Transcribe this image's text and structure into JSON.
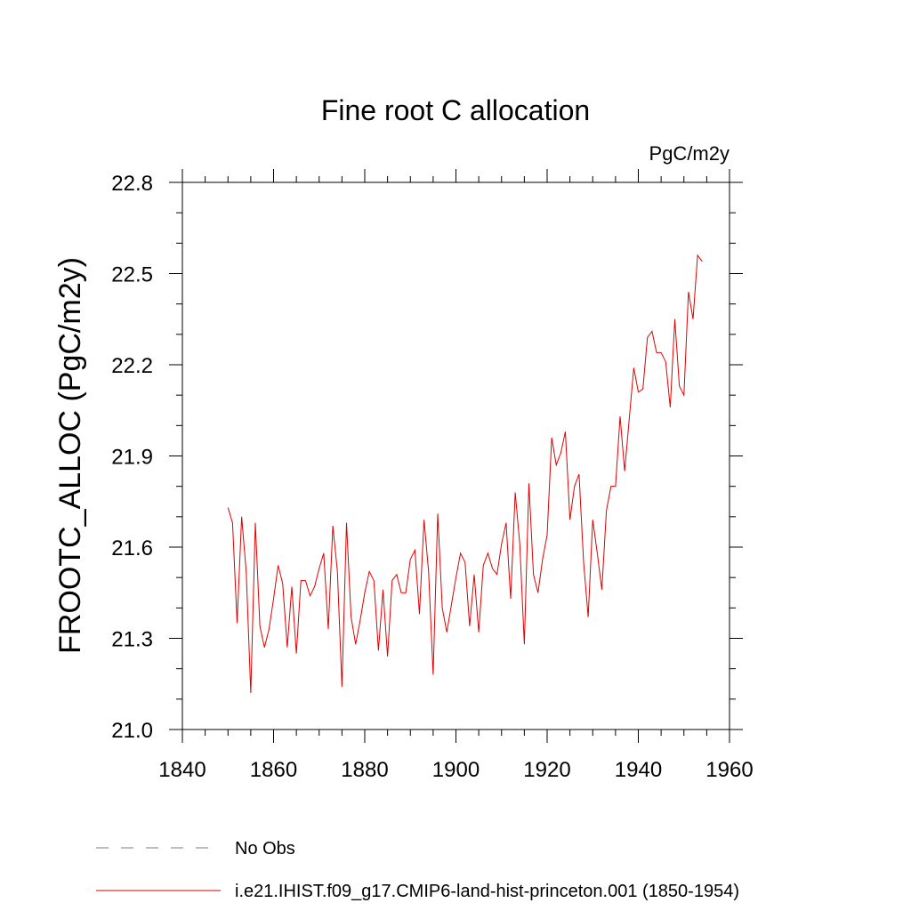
{
  "chart_data": {
    "type": "line",
    "title": "Fine root C allocation",
    "units_label": "PgC/m2y",
    "ylabel": "FROOTC_ALLOC  (PgC/m2y)",
    "xlabel": "",
    "xlim": [
      1840,
      1960
    ],
    "ylim": [
      21.0,
      22.8
    ],
    "x_ticks": [
      1840,
      1860,
      1880,
      1900,
      1920,
      1940,
      1960
    ],
    "y_ticks": [
      21.0,
      21.3,
      21.6,
      21.9,
      22.2,
      22.5,
      22.8
    ],
    "x_tick_labels": [
      "1840",
      "1860",
      "1880",
      "1900",
      "1920",
      "1940",
      "1960"
    ],
    "y_tick_labels": [
      "21.0",
      "21.3",
      "21.6",
      "21.9",
      "22.2",
      "22.5",
      "22.8"
    ],
    "grid": false,
    "legend_position": "bottom",
    "series": [
      {
        "name": "i.e21.IHIST.f09_g17.CMIP6-land-hist-princeton.001 (1850-1954)",
        "color": "#e00000",
        "style": "solid",
        "x_start": 1850,
        "values": [
          21.73,
          21.68,
          21.35,
          21.7,
          21.52,
          21.12,
          21.68,
          21.34,
          21.27,
          21.33,
          21.43,
          21.54,
          21.48,
          21.27,
          21.47,
          21.25,
          21.49,
          21.49,
          21.44,
          21.47,
          21.53,
          21.58,
          21.33,
          21.67,
          21.52,
          21.14,
          21.68,
          21.37,
          21.28,
          21.36,
          21.45,
          21.52,
          21.49,
          21.26,
          21.46,
          21.24,
          21.49,
          21.51,
          21.45,
          21.45,
          21.56,
          21.59,
          21.38,
          21.69,
          21.52,
          21.18,
          21.71,
          21.4,
          21.32,
          21.41,
          21.5,
          21.58,
          21.55,
          21.34,
          21.51,
          21.32,
          21.54,
          21.58,
          21.53,
          21.51,
          21.61,
          21.68,
          21.43,
          21.78,
          21.61,
          21.28,
          21.81,
          21.51,
          21.45,
          21.56,
          21.64,
          21.96,
          21.87,
          21.91,
          21.98,
          21.69,
          21.8,
          21.84,
          21.55,
          21.37,
          21.69,
          21.58,
          21.46,
          21.72,
          21.8,
          21.8,
          22.03,
          21.85,
          22.02,
          22.19,
          22.11,
          22.12,
          22.29,
          22.31,
          22.24,
          22.24,
          22.21,
          22.06,
          22.35,
          22.13,
          22.1,
          22.44,
          22.35,
          22.56,
          22.54
        ]
      },
      {
        "name": "No Obs",
        "color": "#7a70b0",
        "style": "dashed",
        "values": []
      }
    ]
  }
}
